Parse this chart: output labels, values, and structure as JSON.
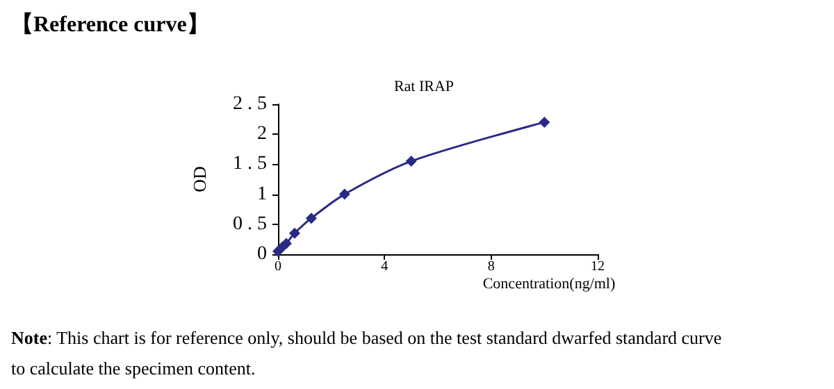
{
  "chart_data": {
    "type": "line",
    "title": "【Reference curve】",
    "subtitle": "Rat IRAP",
    "xlabel": "Concentration(ng/ml)",
    "ylabel": "OD",
    "annotations": [
      "Note: This chart is for reference only, should be based on the test standard dwarfed standard curve to calculate the specimen content."
    ],
    "x": [
      0,
      0.156,
      0.312,
      0.625,
      1.25,
      2.5,
      5,
      10
    ],
    "series": [
      {
        "color": "#2a2a85",
        "values": [
          0.05,
          0.12,
          0.18,
          0.35,
          0.6,
          1.0,
          1.55,
          2.2
        ]
      }
    ],
    "xlim": [
      0,
      12
    ],
    "xticks": [
      0,
      4,
      8,
      12
    ],
    "ylim": [
      0,
      2.5
    ],
    "yticks": [
      0,
      0.5,
      1,
      1.5,
      2,
      2.5
    ],
    "marker": "diamond",
    "line_style": "solid",
    "grid": false,
    "legend": false
  }
}
